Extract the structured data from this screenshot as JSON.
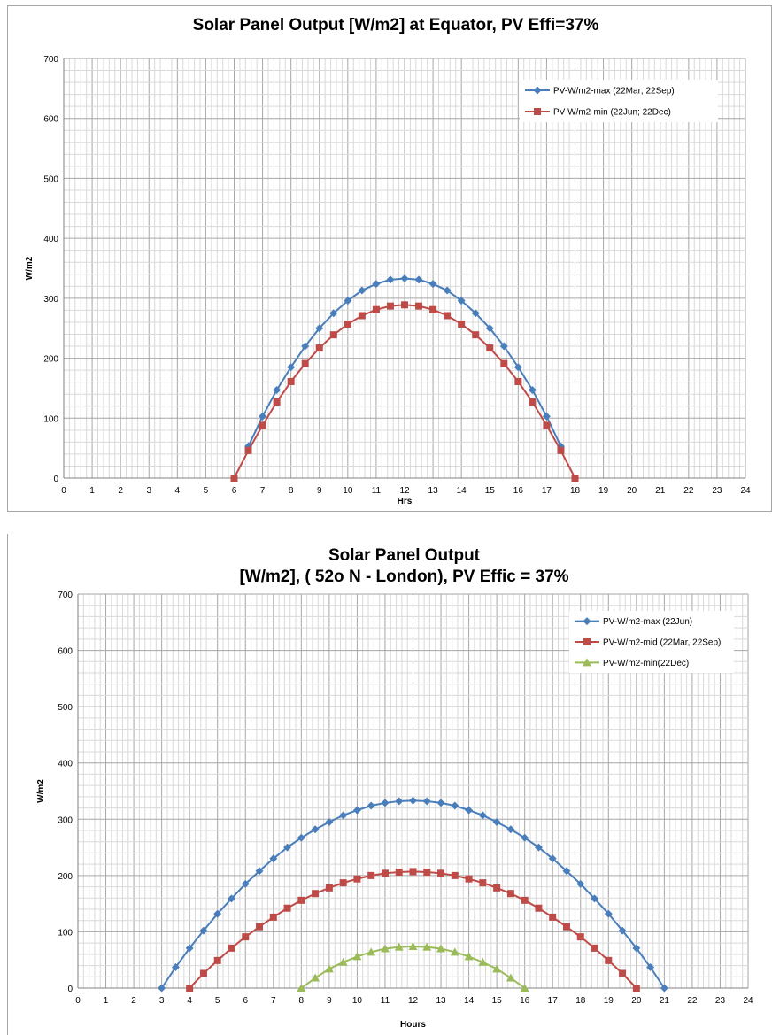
{
  "chart_data": [
    {
      "type": "line",
      "title": "Solar Panel Output [W/m2] at Equator, PV Effi=37%",
      "title_lines": [
        "Solar Panel Output [W/m2] at Equator, PV Effi=37%"
      ],
      "xlabel": "Hrs",
      "ylabel": "W/m2",
      "xlim": [
        0,
        24
      ],
      "ylim": [
        0,
        700
      ],
      "x_ticks": [
        "0",
        "1",
        "2",
        "3",
        "4",
        "5",
        "6",
        "7",
        "8",
        "9",
        "10",
        "11",
        "12",
        "13",
        "14",
        "15",
        "16",
        "17",
        "18",
        "19",
        "20",
        "21",
        "22",
        "23",
        "24"
      ],
      "y_ticks": [
        "0",
        "100",
        "200",
        "300",
        "400",
        "500",
        "600",
        "700"
      ],
      "grid": true,
      "legend_position": "top-right",
      "series": [
        {
          "name": "PV-W/m2-max (22Mar; 22Sep)",
          "color": "#4a7ebb",
          "marker": "diamond",
          "x": [
            6.5,
            7,
            7.5,
            8,
            8.5,
            9,
            9.5,
            10,
            10.5,
            11,
            11.5,
            12,
            12.5,
            13,
            13.5,
            14,
            14.5,
            15,
            15.5,
            16,
            16.5,
            17,
            17.5
          ],
          "y": [
            53,
            103,
            147,
            185,
            220,
            250,
            275,
            296,
            313,
            324,
            331,
            333,
            331,
            324,
            313,
            296,
            275,
            250,
            220,
            185,
            147,
            103,
            53
          ]
        },
        {
          "name": "PV-W/m2-min (22Jun; 22Dec)",
          "color": "#be4b48",
          "marker": "square",
          "x": [
            6,
            6.5,
            7,
            7.5,
            8,
            8.5,
            9,
            9.5,
            10,
            10.5,
            11,
            11.5,
            12,
            12.5,
            13,
            13.5,
            14,
            14.5,
            15,
            15.5,
            16,
            16.5,
            17,
            17.5,
            18
          ],
          "y": [
            0,
            46,
            88,
            127,
            161,
            191,
            217,
            239,
            257,
            271,
            281,
            287,
            289,
            287,
            281,
            271,
            257,
            239,
            217,
            191,
            161,
            127,
            88,
            46,
            0
          ]
        }
      ]
    },
    {
      "type": "line",
      "title": "Solar Panel Output [W/m2], ( 52o N - London), PV Effic = 37%",
      "title_lines": [
        "Solar Panel Output",
        "[W/m2], ( 52o N - London), PV Effic = 37%"
      ],
      "xlabel": "Hours",
      "ylabel": "W/m2",
      "xlim": [
        0,
        24
      ],
      "ylim": [
        0,
        700
      ],
      "x_ticks": [
        "0",
        "1",
        "2",
        "3",
        "4",
        "5",
        "6",
        "7",
        "8",
        "9",
        "10",
        "11",
        "12",
        "13",
        "14",
        "15",
        "16",
        "17",
        "18",
        "19",
        "20",
        "21",
        "22",
        "23",
        "24"
      ],
      "y_ticks": [
        "0",
        "100",
        "200",
        "300",
        "400",
        "500",
        "600",
        "700"
      ],
      "grid": true,
      "legend_position": "top-right",
      "series": [
        {
          "name": "PV-W/m2-max (22Jun)",
          "color": "#4a7ebb",
          "marker": "diamond",
          "x": [
            3,
            3.5,
            4,
            4.5,
            5,
            5.5,
            6,
            6.5,
            7,
            7.5,
            8,
            8.5,
            9,
            9.5,
            10,
            10.5,
            11,
            11.5,
            12,
            12.5,
            13,
            13.5,
            14,
            14.5,
            15,
            15.5,
            16,
            16.5,
            17,
            17.5,
            18,
            18.5,
            19,
            19.5,
            20,
            20.5,
            21
          ],
          "y": [
            0,
            37,
            71,
            102,
            132,
            159,
            185,
            208,
            230,
            250,
            267,
            282,
            295,
            307,
            316,
            324,
            329,
            332,
            333,
            332,
            329,
            324,
            316,
            307,
            295,
            282,
            267,
            250,
            230,
            208,
            185,
            159,
            132,
            102,
            71,
            37,
            0
          ]
        },
        {
          "name": "PV-W/m2-mid (22Mar, 22Sep)",
          "color": "#be4b48",
          "marker": "square",
          "x": [
            4,
            4.5,
            5,
            5.5,
            6,
            6.5,
            7,
            7.5,
            8,
            8.5,
            9,
            9.5,
            10,
            10.5,
            11,
            11.5,
            12,
            12.5,
            13,
            13.5,
            14,
            14.5,
            15,
            15.5,
            16,
            16.5,
            17,
            17.5,
            18,
            18.5,
            19,
            19.5,
            20
          ],
          "y": [
            0,
            26,
            49,
            71,
            91,
            109,
            126,
            142,
            156,
            168,
            178,
            187,
            194,
            200,
            204,
            206,
            207,
            206,
            204,
            200,
            194,
            187,
            178,
            168,
            156,
            142,
            126,
            109,
            91,
            71,
            49,
            26,
            0
          ]
        },
        {
          "name": "PV-W/m2-min(22Dec)",
          "color": "#9bbb59",
          "marker": "triangle",
          "x": [
            8,
            8.5,
            9,
            9.5,
            10,
            10.5,
            11,
            11.5,
            12,
            12.5,
            13,
            13.5,
            14,
            14.5,
            15,
            15.5,
            16
          ],
          "y": [
            0,
            18,
            34,
            46,
            56,
            64,
            70,
            73,
            74,
            73,
            70,
            64,
            56,
            46,
            34,
            18,
            0
          ]
        }
      ]
    }
  ]
}
